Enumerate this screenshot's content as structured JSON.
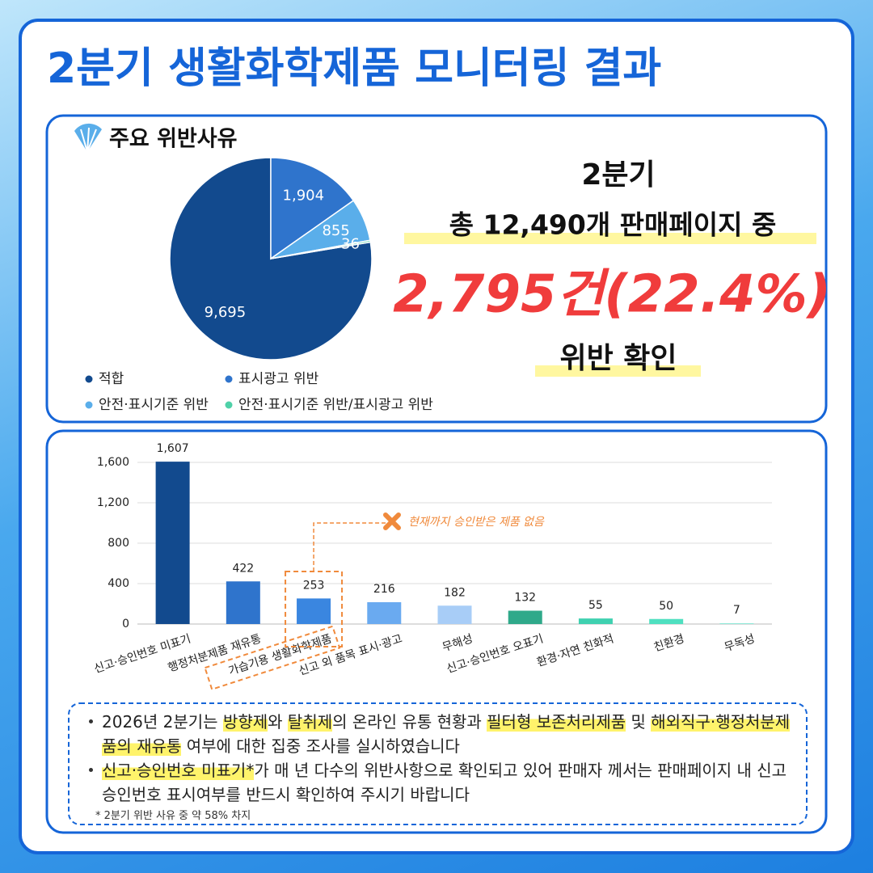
{
  "title": "2분기 생활화학제품 모니터링 결과",
  "summary": {
    "period": "2분기",
    "total": "총 12,490개 판매페이지 중",
    "violations": "2,795건(22.4%)",
    "result": "위반 확인"
  },
  "chart_data": [
    {
      "type": "pie",
      "title": "주요 위반사유",
      "categories": [
        "적합",
        "표시광고 위반",
        "안전·표시기준 위반",
        "안전·표시기준 위반/표시광고 위반"
      ],
      "values": [
        9695,
        1904,
        855,
        36
      ],
      "value_labels": [
        "9,695",
        "1,904",
        "855",
        "36"
      ],
      "colors": [
        "#124a8e",
        "#2f74cc",
        "#5aaeea",
        "#4fd1a8"
      ]
    },
    {
      "type": "bar",
      "categories": [
        "신고·승인번호 미표기",
        "행정처분제품 재유통",
        "가습기용 생활화학제품",
        "신고 외 품목 표시·광고",
        "무해성",
        "신고·승인번호 오표기",
        "환경·자연 친화적",
        "친환경",
        "무독성"
      ],
      "values": [
        1607,
        422,
        253,
        216,
        182,
        132,
        55,
        50,
        7
      ],
      "value_labels": [
        "1,607",
        "422",
        "253",
        "216",
        "182",
        "132",
        "55",
        "50",
        "7"
      ],
      "colors": [
        "#124a8e",
        "#2f74cc",
        "#3a86e0",
        "#6aaaf0",
        "#a8cdf7",
        "#2fa98a",
        "#3fd1b0",
        "#4fe0c0",
        "#7ee8d4"
      ],
      "ylim": [
        0,
        1600
      ],
      "yticks": [
        0,
        400,
        800,
        {
          "value": 1200,
          "label": "1,200"
        },
        {
          "value": 1600,
          "label": "1,600"
        }
      ],
      "grid": true,
      "annotations": [
        {
          "category": "가습기용 생활화학제품",
          "text": "현재까지 승인받은 제품 없음"
        }
      ]
    }
  ],
  "notes": [
    {
      "segments": [
        {
          "text": "2026년 2분기는 "
        },
        {
          "text": "방향제",
          "highlight": true
        },
        {
          "text": "와 "
        },
        {
          "text": "탈취제",
          "highlight": true
        },
        {
          "text": "의 온라인 유통 현황과 "
        },
        {
          "text": "필터형 보존처리제품",
          "highlight": true
        },
        {
          "text": " 및 "
        },
        {
          "text": "해외직구·행정처분제품의 재유통",
          "highlight": true
        },
        {
          "text": " 여부에 대한 집중 조사를 실시하였습니다"
        }
      ]
    },
    {
      "segments": [
        {
          "text": "신고·승인번호 미표기*",
          "highlight": true
        },
        {
          "text": "가 매 년 다수의 위반사항으로 확인되고 있어 판매자 께서는 판매페이지 내 신고승인번호 표시여부를 반드시 확인하여 주시기 바랍니다"
        }
      ]
    }
  ],
  "footnote": "* 2분기 위반 사유 중 약 58% 차지"
}
